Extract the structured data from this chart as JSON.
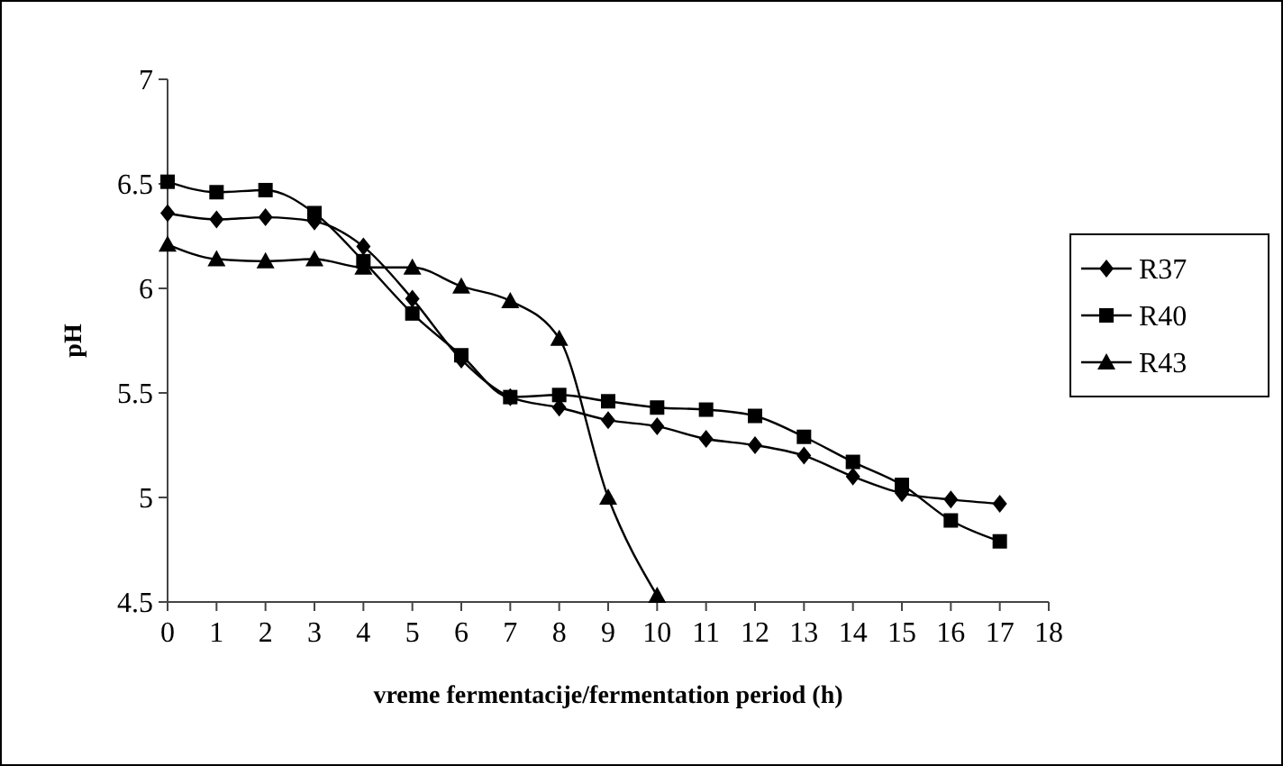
{
  "chart_data": {
    "type": "line",
    "xlabel": "vreme fermentacije/fermentation period (h)",
    "ylabel": "pH",
    "x": [
      0,
      1,
      2,
      3,
      4,
      5,
      6,
      7,
      8,
      9,
      10,
      11,
      12,
      13,
      14,
      15,
      16,
      17
    ],
    "xlim": [
      0,
      18
    ],
    "xticks": [
      0,
      1,
      2,
      3,
      4,
      5,
      6,
      7,
      8,
      9,
      10,
      11,
      12,
      13,
      14,
      15,
      16,
      17,
      18
    ],
    "ylim": [
      4.5,
      7
    ],
    "yticks": [
      4.5,
      5,
      5.5,
      6,
      6.5,
      7
    ],
    "grid": false,
    "legend": "right",
    "line_style": "solid",
    "series": [
      {
        "name": "R37",
        "color": "#000000",
        "marker": "diamond",
        "values": [
          6.36,
          6.33,
          6.34,
          6.32,
          6.2,
          5.95,
          5.66,
          5.48,
          5.43,
          5.37,
          5.34,
          5.28,
          5.25,
          5.2,
          5.1,
          5.02,
          4.99,
          4.97
        ]
      },
      {
        "name": "R40",
        "color": "#000000",
        "marker": "square",
        "values": [
          6.51,
          6.46,
          6.47,
          6.36,
          6.13,
          5.88,
          5.68,
          5.48,
          5.49,
          5.46,
          5.43,
          5.42,
          5.39,
          5.29,
          5.17,
          5.06,
          4.89,
          4.79
        ]
      },
      {
        "name": "R43",
        "color": "#000000",
        "marker": "triangle",
        "x": [
          0,
          1,
          2,
          3,
          4,
          5,
          6,
          7,
          8,
          9,
          10
        ],
        "values": [
          6.21,
          6.14,
          6.13,
          6.14,
          6.1,
          6.1,
          6.01,
          5.94,
          5.76,
          5.0,
          4.53
        ]
      }
    ]
  }
}
